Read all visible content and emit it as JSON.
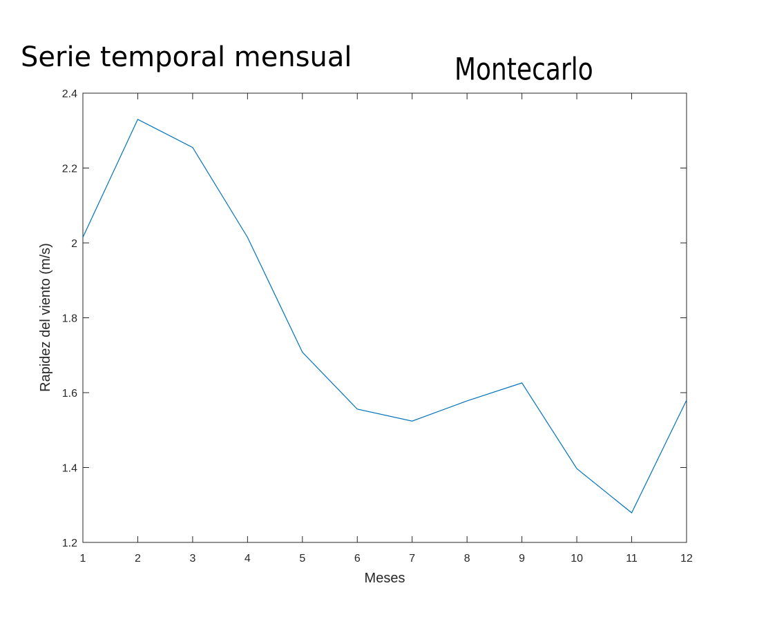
{
  "chart_data": {
    "type": "line",
    "title": "Serie temporal mensual",
    "subtitle": "Montecarlo",
    "xlabel": "Meses",
    "ylabel": "Rapidez del viento (m/s)",
    "xlim": [
      1,
      12
    ],
    "ylim": [
      1.2,
      2.4
    ],
    "xticks": [
      1,
      2,
      3,
      4,
      5,
      6,
      7,
      8,
      9,
      10,
      11,
      12
    ],
    "yticks": [
      1.2,
      1.4,
      1.6,
      1.8,
      2.0,
      2.2,
      2.4
    ],
    "ytick_labels": [
      "1.2",
      "1.4",
      "1.6",
      "1.8",
      "2",
      "2.2",
      "2.4"
    ],
    "grid": false,
    "line_color": "#0072BD",
    "series": [
      {
        "x": [
          1,
          2,
          3,
          4,
          5,
          6,
          7,
          8,
          9,
          10,
          11,
          12
        ],
        "values": [
          2.015,
          2.33,
          2.255,
          2.015,
          1.708,
          1.556,
          1.524,
          1.578,
          1.626,
          1.397,
          1.279,
          1.58
        ]
      }
    ]
  }
}
